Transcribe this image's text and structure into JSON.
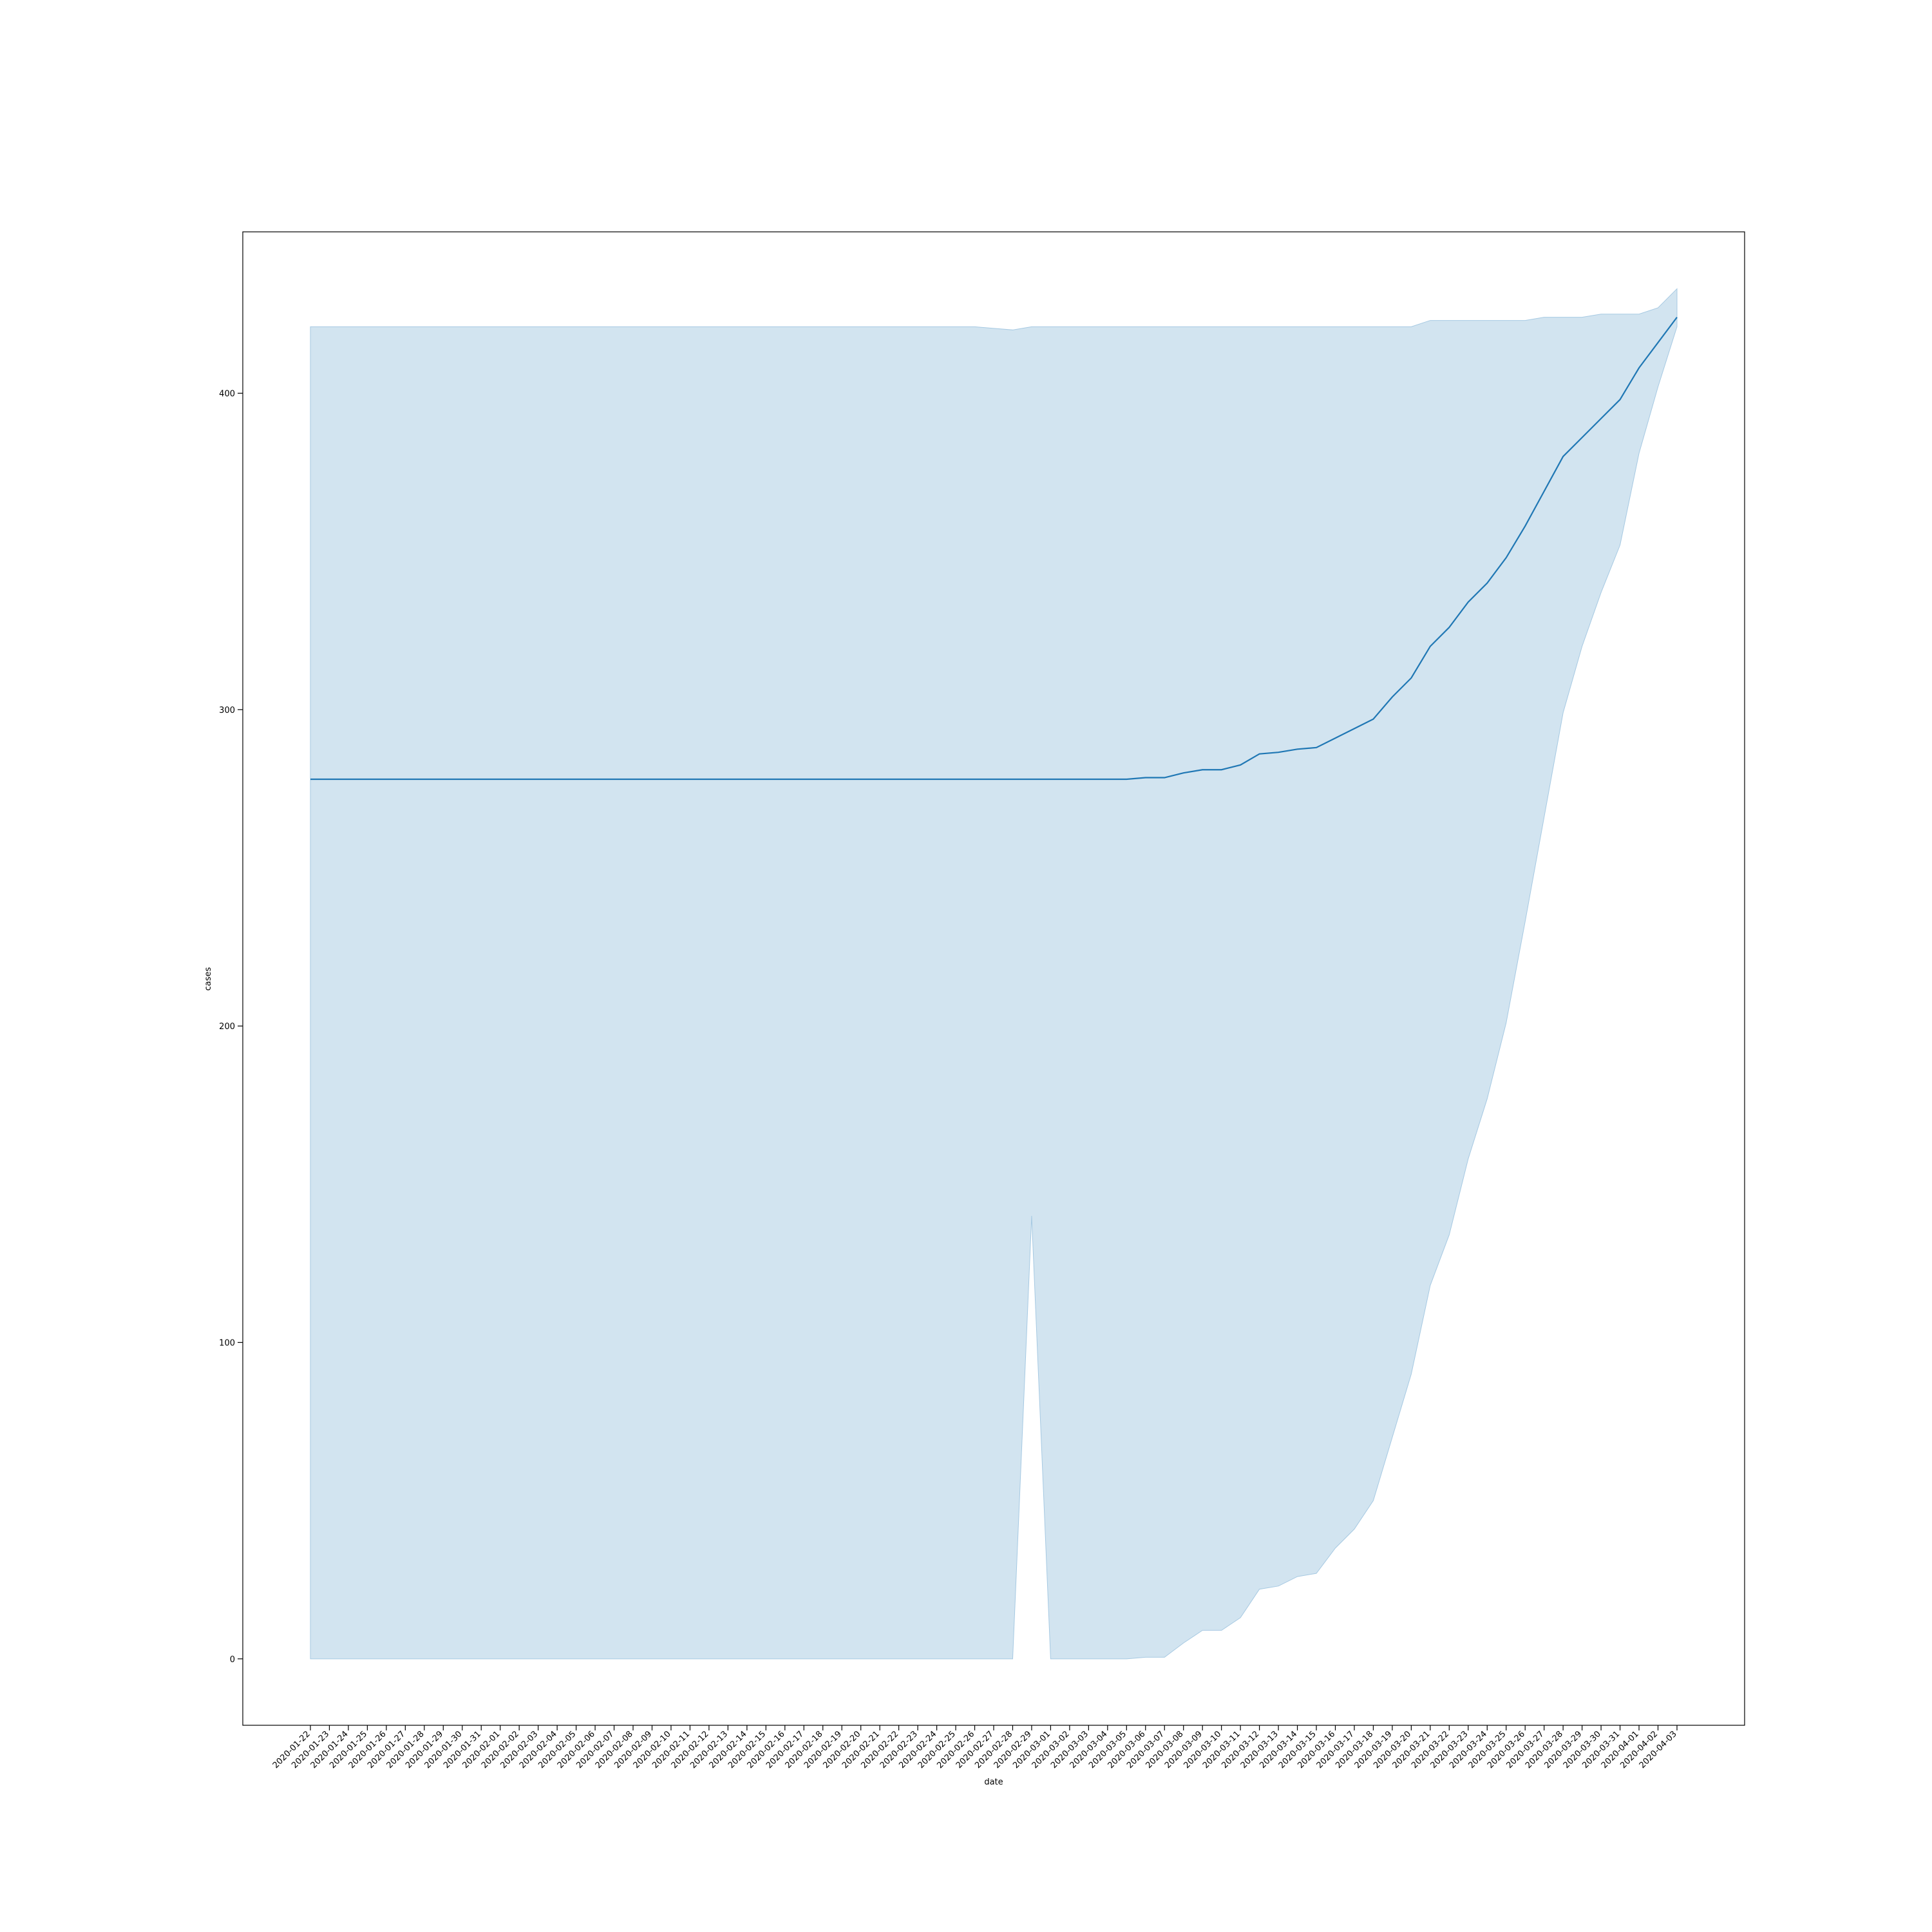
{
  "chart_data": {
    "type": "line",
    "title": "",
    "xlabel": "date",
    "ylabel": "cases",
    "ylim": [
      -21,
      451
    ],
    "yticks": [
      0,
      100,
      200,
      300,
      400
    ],
    "grid": false,
    "legend": "none",
    "colors": {
      "line": "#1f77b4",
      "band": "#a6c9e2"
    },
    "x": [
      "2020-01-22",
      "2020-01-23",
      "2020-01-24",
      "2020-01-25",
      "2020-01-26",
      "2020-01-27",
      "2020-01-28",
      "2020-01-29",
      "2020-01-30",
      "2020-01-31",
      "2020-02-01",
      "2020-02-02",
      "2020-02-03",
      "2020-02-04",
      "2020-02-05",
      "2020-02-06",
      "2020-02-07",
      "2020-02-08",
      "2020-02-09",
      "2020-02-10",
      "2020-02-11",
      "2020-02-12",
      "2020-02-13",
      "2020-02-14",
      "2020-02-15",
      "2020-02-16",
      "2020-02-17",
      "2020-02-18",
      "2020-02-19",
      "2020-02-20",
      "2020-02-21",
      "2020-02-22",
      "2020-02-23",
      "2020-02-24",
      "2020-02-25",
      "2020-02-26",
      "2020-02-27",
      "2020-02-28",
      "2020-02-29",
      "2020-03-01",
      "2020-03-02",
      "2020-03-03",
      "2020-03-04",
      "2020-03-05",
      "2020-03-06",
      "2020-03-07",
      "2020-03-08",
      "2020-03-09",
      "2020-03-10",
      "2020-03-11",
      "2020-03-12",
      "2020-03-13",
      "2020-03-14",
      "2020-03-15",
      "2020-03-16",
      "2020-03-17",
      "2020-03-18",
      "2020-03-19",
      "2020-03-20",
      "2020-03-21",
      "2020-03-22",
      "2020-03-23",
      "2020-03-24",
      "2020-03-25",
      "2020-03-26",
      "2020-03-27",
      "2020-03-28",
      "2020-03-29",
      "2020-03-30",
      "2020-03-31",
      "2020-04-01",
      "2020-04-02",
      "2020-04-03"
    ],
    "series": [
      {
        "values": [
          278,
          278,
          278,
          278,
          278,
          278,
          278,
          278,
          278,
          278,
          278,
          278,
          278,
          278,
          278,
          278,
          278,
          278,
          278,
          278,
          278,
          278,
          278,
          278,
          278,
          278,
          278,
          278,
          278,
          278,
          278,
          278,
          278,
          278,
          278,
          278,
          278,
          278,
          278,
          278,
          278,
          278,
          278,
          278,
          278.5,
          278.5,
          280,
          281,
          281,
          282.5,
          286,
          286.5,
          287.5,
          288,
          291,
          294,
          297,
          304,
          310,
          320,
          326,
          334,
          340,
          348,
          358,
          369,
          380,
          386,
          392,
          398,
          408,
          416,
          424
        ],
        "lower": [
          0,
          0,
          0,
          0,
          0,
          0,
          0,
          0,
          0,
          0,
          0,
          0,
          0,
          0,
          0,
          0,
          0,
          0,
          0,
          0,
          0,
          0,
          0,
          0,
          0,
          0,
          0,
          0,
          0,
          0,
          0,
          0,
          0,
          0,
          0,
          0,
          0,
          0,
          140,
          0,
          0,
          0,
          0,
          0,
          0.5,
          0.5,
          5,
          9,
          9,
          13,
          22,
          23,
          26,
          27,
          35,
          41,
          50,
          70,
          90,
          118,
          134,
          158,
          177,
          201,
          233,
          266,
          299,
          320,
          337,
          352,
          381,
          402,
          421
        ],
        "upper": [
          421,
          421,
          421,
          421,
          421,
          421,
          421,
          421,
          421,
          421,
          421,
          421,
          421,
          421,
          421,
          421,
          421,
          421,
          421,
          421,
          421,
          421,
          421,
          421,
          421,
          421,
          421,
          421,
          421,
          421,
          421,
          421,
          421,
          421,
          421,
          421,
          420.5,
          420,
          421,
          421,
          421,
          421,
          421,
          421,
          421,
          421,
          421,
          421,
          421,
          421,
          421,
          421,
          421,
          421,
          421,
          421,
          421,
          421,
          421,
          423,
          423,
          423,
          423,
          423,
          423,
          424,
          424,
          424,
          425,
          425,
          425,
          427,
          433
        ]
      }
    ]
  }
}
